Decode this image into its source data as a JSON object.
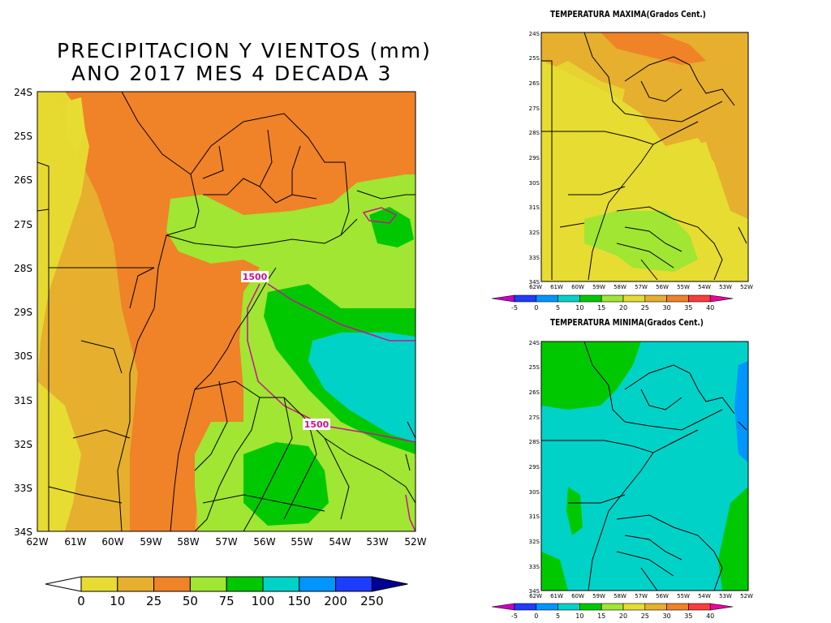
{
  "main_map": {
    "title_line1": "PRECIPITACION Y VIENTOS (mm)",
    "title_line2": "ANO 2017 MES 4 DECADA 3",
    "lat_labels": [
      "24S",
      "25S",
      "26S",
      "27S",
      "28S",
      "29S",
      "30S",
      "31S",
      "32S",
      "33S",
      "34S"
    ],
    "lon_labels": [
      "62W",
      "61W",
      "60W",
      "59W",
      "58W",
      "57W",
      "56W",
      "55W",
      "54W",
      "53W",
      "52W"
    ],
    "contour_labels": [
      "1500",
      "1500"
    ],
    "colorbar": {
      "labels": [
        "0",
        "10",
        "25",
        "50",
        "75",
        "100",
        "150",
        "200",
        "250"
      ],
      "colors": [
        "#ffffff",
        "#e6dc32",
        "#e6af2d",
        "#f08228",
        "#a0e632",
        "#00c800",
        "#00d2c8",
        "#0096ff",
        "#1e3cff",
        "#000096"
      ]
    }
  },
  "max_map": {
    "title": "TEMPERATURA MAXIMA(Grados Cent.)",
    "lat_labels": [
      "24S",
      "25S",
      "26S",
      "27S",
      "28S",
      "29S",
      "30S",
      "31S",
      "32S",
      "33S",
      "34S"
    ],
    "lon_labels": [
      "62W",
      "61W",
      "60W",
      "59W",
      "58W",
      "57W",
      "56W",
      "55W",
      "54W",
      "53W",
      "52W"
    ],
    "colorbar": {
      "labels": [
        "-5",
        "0",
        "5",
        "10",
        "15",
        "20",
        "25",
        "30",
        "35",
        "40"
      ],
      "colors": [
        "#c800c8",
        "#1e3cff",
        "#0096ff",
        "#00d2c8",
        "#00c800",
        "#a0e632",
        "#e6dc32",
        "#e6af2d",
        "#f08228",
        "#fa3c3c",
        "#f000a0"
      ]
    }
  },
  "min_map": {
    "title": "TEMPERATURA MINIMA(Grados Cent.)",
    "lat_labels": [
      "24S",
      "25S",
      "26S",
      "27S",
      "28S",
      "29S",
      "30S",
      "31S",
      "32S",
      "33S",
      "34S"
    ],
    "lon_labels": [
      "62W",
      "61W",
      "60W",
      "59W",
      "58W",
      "57W",
      "56W",
      "55W",
      "54W",
      "53W",
      "52W"
    ],
    "colorbar": {
      "labels": [
        "-5",
        "0",
        "5",
        "10",
        "15",
        "20",
        "25",
        "30",
        "35",
        "40"
      ],
      "colors": [
        "#c800c8",
        "#1e3cff",
        "#0096ff",
        "#00d2c8",
        "#00c800",
        "#a0e632",
        "#e6dc32",
        "#e6af2d",
        "#f08228",
        "#fa3c3c",
        "#f000a0"
      ]
    }
  }
}
